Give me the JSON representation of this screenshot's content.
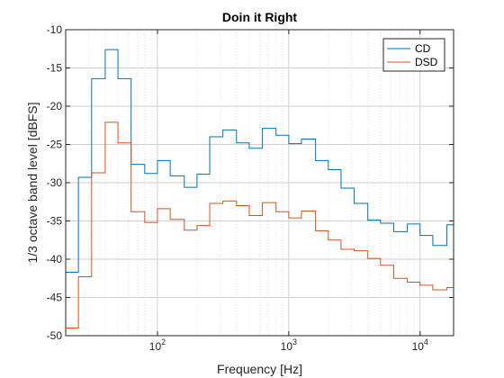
{
  "chart_data": {
    "type": "line",
    "step": true,
    "title": "Doin it Right",
    "xlabel": "Frequency [Hz]",
    "ylabel": "1/3 octave band level [dBFS]",
    "xscale": "log",
    "xlim": [
      20,
      18000
    ],
    "ylim": [
      -50,
      -10
    ],
    "grid": true,
    "legend_position": "top-right",
    "x_ticks": [
      {
        "value": 100,
        "base": "10",
        "exp": "2"
      },
      {
        "value": 1000,
        "base": "10",
        "exp": "3"
      },
      {
        "value": 10000,
        "base": "10",
        "exp": "4"
      }
    ],
    "y_ticks": [
      -50,
      -45,
      -40,
      -35,
      -30,
      -25,
      -20,
      -15,
      -10
    ],
    "band_edges": [
      20,
      25,
      31.5,
      40,
      50,
      63,
      80,
      100,
      125,
      160,
      200,
      250,
      315,
      400,
      500,
      630,
      800,
      1000,
      1250,
      1600,
      2000,
      2500,
      3150,
      4000,
      5000,
      6300,
      8000,
      10000,
      12500,
      16000,
      18000
    ],
    "series": [
      {
        "name": "CD",
        "color": "#0072BD",
        "values": [
          -41.7,
          -29.3,
          -16.4,
          -12.6,
          -16.4,
          -27.6,
          -28.8,
          -27.1,
          -29.1,
          -30.6,
          -28.9,
          -24.0,
          -23.1,
          -24.8,
          -25.5,
          -22.9,
          -23.8,
          -24.9,
          -24.3,
          -27.1,
          -28.3,
          -30.7,
          -32.7,
          -34.9,
          -35.3,
          -36.4,
          -35.4,
          -36.9,
          -38.2,
          -35.5
        ]
      },
      {
        "name": "DSD",
        "color": "#D95319",
        "values": [
          -49.0,
          -42.3,
          -28.7,
          -22.1,
          -24.8,
          -33.8,
          -35.2,
          -33.4,
          -34.8,
          -36.2,
          -35.6,
          -32.7,
          -32.4,
          -33.0,
          -34.3,
          -32.6,
          -33.8,
          -34.6,
          -33.7,
          -36.3,
          -37.5,
          -38.7,
          -38.9,
          -39.9,
          -40.8,
          -42.5,
          -43.0,
          -43.4,
          -44.0,
          -43.7
        ]
      }
    ]
  }
}
